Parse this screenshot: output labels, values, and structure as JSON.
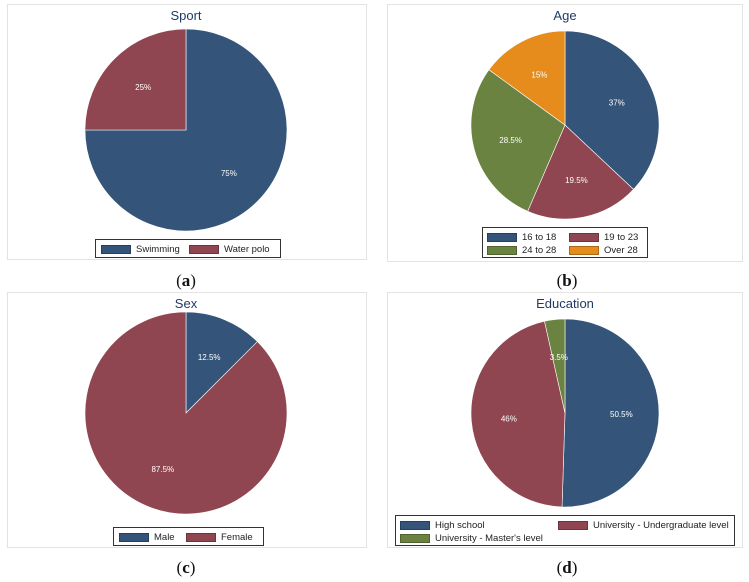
{
  "colors": {
    "blue": "#345479",
    "red": "#904650",
    "green": "#6a8341",
    "orange": "#e58c1d"
  },
  "chart_data": [
    {
      "type": "pie",
      "title": "Sport",
      "caption": "a",
      "categories": [
        "Swimming",
        "Water polo"
      ],
      "values": [
        75,
        25
      ],
      "labels": [
        "75%",
        "25%"
      ],
      "colors": [
        "#345479",
        "#904650"
      ],
      "legend": "bottom"
    },
    {
      "type": "pie",
      "title": "Age",
      "caption": "b",
      "categories": [
        "16 to 18",
        "19 to 23",
        "24 to 28",
        "Over 28"
      ],
      "values": [
        37,
        19.5,
        28.5,
        15
      ],
      "labels": [
        "37%",
        "19.5%",
        "28.5%",
        "15%"
      ],
      "colors": [
        "#345479",
        "#904650",
        "#6a8341",
        "#e58c1d"
      ],
      "legend": "bottom"
    },
    {
      "type": "pie",
      "title": "Sex",
      "caption": "c",
      "categories": [
        "Male",
        "Female"
      ],
      "values": [
        12.5,
        87.5
      ],
      "labels": [
        "12.5%",
        "87.5%"
      ],
      "colors": [
        "#345479",
        "#904650"
      ],
      "legend": "bottom"
    },
    {
      "type": "pie",
      "title": "Education",
      "caption": "d",
      "categories": [
        "High school",
        "University - Undergraduate level",
        "University - Master's level"
      ],
      "values": [
        50.5,
        46,
        3.5
      ],
      "labels": [
        "50.5%",
        "46%",
        "3.5%"
      ],
      "colors": [
        "#345479",
        "#904650",
        "#6a8341"
      ],
      "legend": "bottom"
    }
  ]
}
